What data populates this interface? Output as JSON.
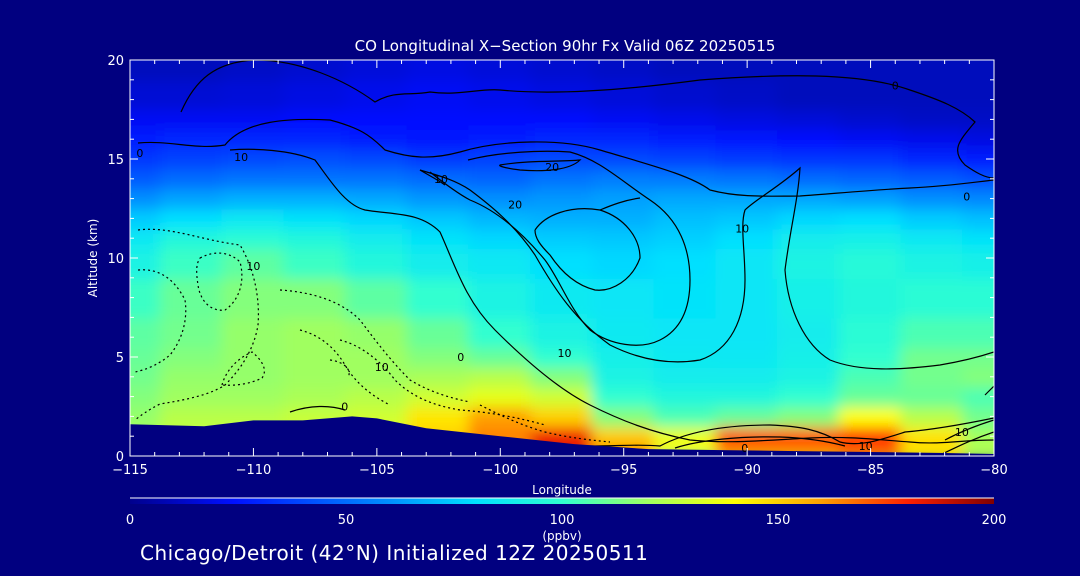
{
  "chart_data": {
    "type": "heatmap",
    "title": "CO Longitudinal X−Section 90hr  Fx Valid 06Z 20250515",
    "xlabel": "Longitude",
    "ylabel": "Altitude (km)",
    "xlim": [
      -115,
      -80
    ],
    "ylim": [
      0,
      20
    ],
    "x_ticks": [
      {
        "v": -115,
        "label": "−115"
      },
      {
        "v": -110,
        "label": "−110"
      },
      {
        "v": -105,
        "label": "−105"
      },
      {
        "v": -100,
        "label": "−100"
      },
      {
        "v": -95,
        "label": "−95"
      },
      {
        "v": -90,
        "label": "−90"
      },
      {
        "v": -85,
        "label": "−85"
      },
      {
        "v": -80,
        "label": "−80"
      }
    ],
    "y_ticks": [
      {
        "v": 0,
        "label": "0"
      },
      {
        "v": 5,
        "label": "5"
      },
      {
        "v": 10,
        "label": "10"
      },
      {
        "v": 15,
        "label": "15"
      },
      {
        "v": 20,
        "label": "20"
      }
    ],
    "colorbar": {
      "min": 0,
      "max": 200,
      "ticks": [
        {
          "v": 0,
          "label": "0"
        },
        {
          "v": 50,
          "label": "50"
        },
        {
          "v": 100,
          "label": "100"
        },
        {
          "v": 150,
          "label": "150"
        },
        {
          "v": 200,
          "label": "200"
        }
      ],
      "unit_label": "(ppbv)"
    },
    "co_field_ppbv": {
      "lon": [
        -115,
        -112.5,
        -110,
        -107.5,
        -105,
        -102.5,
        -100,
        -97.5,
        -95,
        -92.5,
        -90,
        -87.5,
        -85,
        -82.5,
        -80
      ],
      "alt": [
        0,
        0.5,
        1,
        2,
        3,
        4,
        5,
        6,
        8,
        10,
        11,
        12,
        13,
        14,
        15,
        16,
        17,
        18,
        20
      ],
      "values": [
        [
          125,
          130,
          130,
          130,
          130,
          140,
          155,
          175,
          160,
          120,
          150,
          150,
          160,
          140,
          120
        ],
        [
          125,
          130,
          130,
          132,
          135,
          148,
          162,
          185,
          160,
          140,
          175,
          175,
          180,
          150,
          125
        ],
        [
          122,
          128,
          130,
          132,
          135,
          150,
          165,
          182,
          150,
          135,
          170,
          170,
          175,
          145,
          120
        ],
        [
          118,
          125,
          125,
          128,
          130,
          145,
          160,
          150,
          115,
          105,
          110,
          115,
          140,
          125,
          112
        ],
        [
          115,
          120,
          120,
          122,
          125,
          130,
          135,
          130,
          100,
          95,
          95,
          100,
          110,
          110,
          105
        ],
        [
          112,
          118,
          118,
          120,
          120,
          122,
          125,
          115,
          92,
          88,
          88,
          92,
          105,
          112,
          115
        ],
        [
          110,
          115,
          118,
          120,
          120,
          115,
          110,
          100,
          90,
          86,
          85,
          90,
          100,
          112,
          112
        ],
        [
          108,
          112,
          118,
          120,
          118,
          110,
          100,
          92,
          86,
          84,
          84,
          88,
          98,
          105,
          105
        ],
        [
          102,
          110,
          115,
          115,
          108,
          100,
          92,
          86,
          84,
          82,
          84,
          90,
          95,
          98,
          98
        ],
        [
          92,
          102,
          108,
          102,
          95,
          88,
          85,
          80,
          78,
          80,
          84,
          92,
          96,
          92,
          90
        ],
        [
          85,
          95,
          98,
          95,
          88,
          82,
          78,
          75,
          74,
          76,
          80,
          88,
          90,
          85,
          82
        ],
        [
          75,
          80,
          85,
          82,
          78,
          74,
          70,
          68,
          68,
          72,
          74,
          78,
          80,
          75,
          72
        ],
        [
          60,
          65,
          68,
          68,
          66,
          62,
          60,
          62,
          64,
          66,
          66,
          66,
          64,
          60,
          58
        ],
        [
          45,
          50,
          52,
          52,
          52,
          50,
          48,
          52,
          55,
          54,
          52,
          50,
          48,
          45,
          42
        ],
        [
          35,
          38,
          40,
          42,
          40,
          36,
          38,
          40,
          40,
          38,
          36,
          34,
          34,
          30,
          28
        ],
        [
          28,
          30,
          30,
          30,
          28,
          26,
          28,
          30,
          30,
          28,
          26,
          24,
          22,
          20,
          18
        ],
        [
          22,
          22,
          22,
          24,
          24,
          24,
          24,
          24,
          22,
          20,
          18,
          16,
          14,
          12,
          12
        ],
        [
          15,
          15,
          16,
          18,
          20,
          22,
          20,
          18,
          16,
          14,
          12,
          10,
          10,
          10,
          10
        ],
        [
          10,
          10,
          12,
          14,
          16,
          18,
          16,
          14,
          12,
          10,
          10,
          10,
          10,
          10,
          10
        ]
      ]
    },
    "terrain_km": [
      [
        -115,
        1.6
      ],
      [
        -112,
        1.5
      ],
      [
        -110,
        1.8
      ],
      [
        -108,
        1.8
      ],
      [
        -106,
        2.0
      ],
      [
        -105,
        1.9
      ],
      [
        -103,
        1.4
      ],
      [
        -100,
        1.0
      ],
      [
        -97,
        0.6
      ],
      [
        -94,
        0.35
      ],
      [
        -91,
        0.3
      ],
      [
        -88,
        0.25
      ],
      [
        -85,
        0.2
      ],
      [
        -82,
        0.15
      ],
      [
        -80,
        0.1
      ]
    ],
    "contour_labels": [
      {
        "text": "10",
        "lon": -110.0,
        "alt": 9.4
      },
      {
        "text": "10",
        "lon": -110.5,
        "alt": 14.9
      },
      {
        "text": "10",
        "lon": -102.4,
        "alt": 13.8
      },
      {
        "text": "20",
        "lon": -97.9,
        "alt": 14.4
      },
      {
        "text": "20",
        "lon": -99.4,
        "alt": 12.5
      },
      {
        "text": "10",
        "lon": -90.2,
        "alt": 11.3
      },
      {
        "text": "0",
        "lon": -84.0,
        "alt": 18.5
      },
      {
        "text": "0",
        "lon": -114.6,
        "alt": 15.1
      },
      {
        "text": "0",
        "lon": -81.1,
        "alt": 12.9
      },
      {
        "text": "10",
        "lon": -104.8,
        "alt": 4.3
      },
      {
        "text": "0",
        "lon": -101.6,
        "alt": 4.8
      },
      {
        "text": "10",
        "lon": -97.4,
        "alt": 5.0
      },
      {
        "text": "0",
        "lon": -106.3,
        "alt": 2.3
      },
      {
        "text": "0",
        "lon": -90.1,
        "alt": 0.2
      },
      {
        "text": "10",
        "lon": -85.2,
        "alt": 0.3
      },
      {
        "text": "10",
        "lon": -81.3,
        "alt": 1.0
      }
    ]
  },
  "footer": {
    "caption": "Chicago/Detroit (42°N) Initialized 12Z 20250511"
  }
}
